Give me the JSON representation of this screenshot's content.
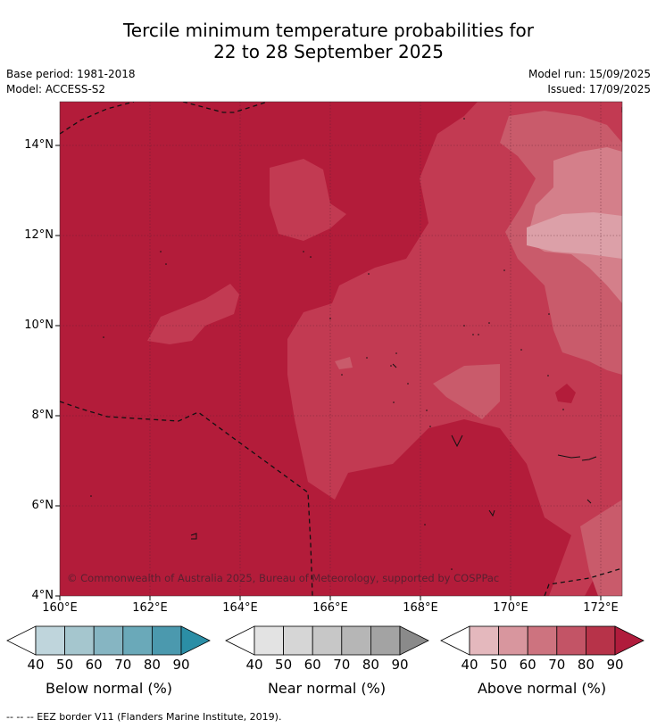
{
  "title_line1": "Tercile minimum temperature probabilities for",
  "title_line2": "22 to 28 September 2025",
  "meta": {
    "base_period": "Base period: 1981-2018",
    "model": "Model: ACCESS-S2",
    "model_run": "Model run: 15/09/2025",
    "issued": "Issued: 17/09/2025"
  },
  "map": {
    "lon_ticks": [
      "160°E",
      "162°E",
      "164°E",
      "166°E",
      "168°E",
      "170°E",
      "172°E"
    ],
    "lat_ticks": [
      "14°N",
      "12°N",
      "10°N",
      "8°N",
      "6°N",
      "4°N"
    ],
    "copyright": "© Commonwealth of Australia 2025, Bureau of Meteorology, supported by COSPPac",
    "dominant_category": "Above normal",
    "colors": {
      "above_90": "#b31c3a",
      "above_80": "#c23a52",
      "above_70": "#c95b6b",
      "above_60": "#d47f8a"
    }
  },
  "colorbars": [
    {
      "label": "Below normal (%)",
      "ticks": [
        "40",
        "50",
        "60",
        "70",
        "80",
        "90"
      ],
      "colors": [
        "#ffffff",
        "#bfd5dc",
        "#a5c6ce",
        "#86b5c2",
        "#6aa9b9",
        "#4b99ae",
        "#2b8ea6"
      ]
    },
    {
      "label": "Near normal (%)",
      "ticks": [
        "40",
        "50",
        "60",
        "70",
        "80",
        "90"
      ],
      "colors": [
        "#ffffff",
        "#e3e3e3",
        "#d6d6d6",
        "#c7c7c7",
        "#b6b6b6",
        "#a3a3a3",
        "#8a8a8a"
      ]
    },
    {
      "label": "Above normal (%)",
      "ticks": [
        "40",
        "50",
        "60",
        "70",
        "80",
        "90"
      ],
      "colors": [
        "#ffffff",
        "#e4b8bd",
        "#d8969e",
        "#cd737f",
        "#c35466",
        "#b73349",
        "#b01c3c"
      ]
    }
  ],
  "footnote": "--  --  -- EEZ border V11 (Flanders Marine Institute, 2019)."
}
